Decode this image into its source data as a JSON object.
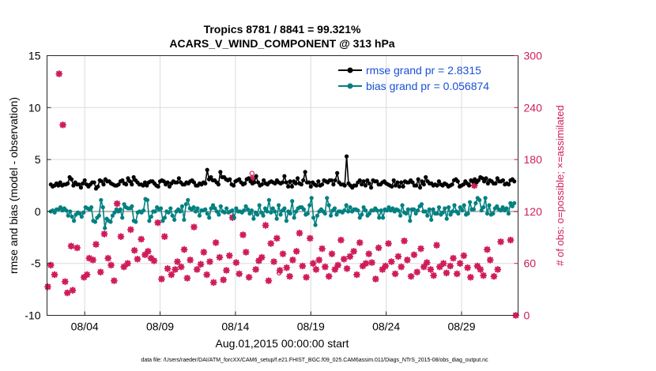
{
  "chart_data": {
    "type": "line",
    "title_line1": "Tropics 8781 / 8841 = 99.321%",
    "title_line2": "ACARS_V_WIND_COMPONENT @ 313 hPa",
    "xlabel": "Aug.01,2015 00:00:00 start",
    "ylabel": "rmse and bias (model - observation)",
    "y2label": "# of obs: o=possible; ×=assimilated",
    "xlim": [
      0.5,
      31.75
    ],
    "ylim": [
      -10,
      15
    ],
    "y2lim": [
      0,
      300
    ],
    "x_ticks": [
      3,
      8,
      13,
      18,
      23,
      28
    ],
    "x_tick_labels": [
      "08/04",
      "08/09",
      "08/14",
      "08/19",
      "08/24",
      "08/29"
    ],
    "y_ticks": [
      -10,
      -5,
      0,
      5,
      10,
      15
    ],
    "y2_ticks": [
      0,
      60,
      120,
      180,
      240,
      300
    ],
    "grid": true,
    "legend_position": "top-right",
    "footer": "data file: /Users/raeder/DAI/ATM_forcXX/CAM6_setup/f.e21.FHIST_BGC.f09_025.CAM6assim.011/Diags_NTrS_2015-08/obs_diag_output.nc",
    "colors": {
      "rmse": "#000000",
      "bias": "#008080",
      "obs": "#d01c5b",
      "zero_line": "#b4b4b4",
      "legend_text": "#1a4fd6"
    },
    "series": [
      {
        "name": "rmse grand pr = 2.8315",
        "values": [
          2.6,
          2.4,
          2.5,
          2.7,
          2.5,
          2.8,
          2.5,
          2.6,
          2.6,
          2.7,
          3.3,
          3.1,
          2.5,
          2.8,
          2.6,
          2.6,
          2.3,
          2.7,
          3.0,
          2.6,
          2.4,
          2.6,
          2.8,
          2.8,
          2.2,
          2.4,
          3.0,
          2.9,
          2.6,
          3.1,
          2.9,
          2.9,
          2.7,
          2.6,
          2.5,
          2.5,
          2.6,
          2.9,
          3.0,
          2.7,
          2.6,
          3.2,
          2.9,
          2.6,
          3.3,
          3.0,
          2.8,
          2.6,
          2.6,
          2.5,
          2.8,
          2.5,
          2.8,
          2.9,
          2.9,
          2.7,
          2.5,
          2.4,
          2.9,
          3.0,
          2.9,
          2.6,
          2.8,
          2.4,
          2.7,
          2.9,
          2.8,
          2.8,
          3.2,
          2.8,
          2.6,
          2.6,
          2.8,
          2.7,
          2.9,
          3.0,
          2.8,
          2.5,
          2.5,
          2.7,
          2.6,
          2.8,
          2.7,
          4.0,
          3.1,
          3.3,
          3.0,
          3.0,
          2.8,
          2.6,
          3.8,
          3.3,
          3.3,
          3.1,
          3.0,
          3.1,
          2.6,
          2.5,
          2.9,
          3.0,
          3.1,
          2.8,
          2.6,
          2.7,
          3.1,
          3.2,
          2.9,
          2.7,
          2.8,
          3.4,
          2.8,
          2.5,
          2.6,
          3.0,
          2.7,
          2.6,
          2.8,
          2.9,
          2.8,
          2.7,
          3.0,
          2.8,
          2.7,
          2.8,
          3.4,
          2.8,
          2.4,
          2.9,
          2.4,
          2.9,
          2.7,
          3.2,
          2.7,
          2.6,
          3.0,
          3.8,
          2.8,
          2.8,
          2.4,
          2.8,
          2.6,
          2.5,
          2.9,
          2.5,
          2.6,
          3.0,
          2.9,
          2.8,
          3.0,
          3.0,
          2.6,
          3.0,
          3.7,
          2.8,
          2.6,
          2.6,
          2.5,
          5.3,
          2.7,
          2.5,
          2.3,
          2.5,
          2.5,
          2.8,
          3.0,
          2.6,
          2.9,
          2.5,
          3.0,
          2.7,
          2.3,
          3.0,
          2.9,
          2.9,
          2.6,
          2.6,
          2.8,
          2.9,
          2.7,
          2.6,
          2.5,
          2.4,
          3.0,
          2.5,
          2.8,
          2.4,
          2.8,
          2.4,
          2.9,
          2.8,
          2.8,
          3.0,
          2.8,
          2.5,
          2.5,
          3.1,
          2.3,
          2.9,
          2.6,
          3.3,
          2.9,
          2.7,
          2.7,
          2.5,
          2.6,
          2.5,
          2.9,
          2.6,
          2.5,
          2.7,
          2.6,
          2.4,
          2.5,
          2.6,
          3.0,
          3.1,
          2.9,
          2.4,
          2.5,
          2.6,
          2.9,
          2.7,
          2.5,
          3.0,
          2.9,
          3.1,
          2.8,
          3.0,
          3.3,
          3.2,
          2.9,
          3.2,
          2.7,
          3.0,
          2.9,
          2.7,
          2.7,
          3.2,
          2.9,
          2.9,
          3.0,
          2.6,
          2.7,
          2.6,
          3.0,
          3.1,
          2.9
        ]
      },
      {
        "name": "bias grand pr = 0.056874",
        "values": [
          0.0,
          0.1,
          -0.1,
          0.2,
          0.2,
          0.4,
          0.1,
          0.3,
          0.1,
          -0.4,
          0.0,
          -0.5,
          -0.9,
          -0.3,
          -0.1,
          -0.2,
          -0.5,
          -0.1,
          0.4,
          0.3,
          0.2,
          0.4,
          -0.9,
          -1.0,
          -0.6,
          -0.4,
          1.1,
          0.4,
          -1.6,
          -0.7,
          -0.9,
          -1.0,
          -0.4,
          -0.1,
          0.2,
          0.0,
          0.2,
          -0.6,
          0.7,
          0.4,
          0.3,
          0.3,
          0.5,
          -0.9,
          -1.0,
          -0.1,
          0.0,
          -0.1,
          0.1,
          1.2,
          1.1,
          -0.9,
          -0.5,
          0.0,
          0.0,
          0.4,
          0.2,
          0.3,
          -0.9,
          -0.6,
          0.0,
          -0.1,
          0.3,
          -0.4,
          -0.8,
          0.0,
          0.2,
          0.0,
          0.5,
          -0.8,
          0.7,
          1.1,
          0.3,
          0.2,
          0.4,
          0.0,
          0.3,
          -0.4,
          0.1,
          0.1,
          0.2,
          -0.2,
          -0.6,
          0.3,
          0.6,
          0.3,
          0.0,
          -0.3,
          0.5,
          0.0,
          -0.1,
          0.3,
          -0.1,
          0.0,
          0.1,
          -0.6,
          0.3,
          0.0,
          0.0,
          -0.1,
          0.1,
          0.5,
          0.2,
          -0.2,
          0.1,
          -0.7,
          -0.1,
          -0.3,
          0.6,
          -0.1,
          -0.4,
          0.3,
          0.0,
          1.1,
          -0.1,
          0.3,
          0.0,
          -0.7,
          0.6,
          -0.3,
          0.1,
          0.3,
          -0.9,
          0.0,
          -0.2,
          1.0,
          -0.6,
          0.0,
          0.3,
          0.4,
          0.4,
          0.2,
          -0.3,
          -0.2,
          0.6,
          1.3,
          -0.6,
          -1.3,
          -0.4,
          0.0,
          0.2,
          0.0,
          -0.2,
          1.3,
          0.6,
          -0.4,
          0.1,
          0.3,
          -0.3,
          0.0,
          0.0,
          -0.1,
          0.1,
          0.6,
          0.0,
          0.4,
          0.0,
          0.2,
          0.2,
          0.1,
          -0.6,
          -0.3,
          0.4,
          0.1,
          -0.4,
          -0.2,
          0.1,
          0.1,
          0.3,
          0.1,
          -0.6,
          0.1,
          -0.6,
          0.2,
          0.1,
          0.4,
          0.1,
          0.3,
          0.0,
          0.2,
          0.1,
          -0.4,
          0.6,
          -0.1,
          -0.2,
          0.2,
          -0.9,
          0.2,
          0.2,
          -0.2,
          0.1,
          0.5,
          0.7,
          0.0,
          0.0,
          -0.4,
          0.2,
          -0.8,
          0.2,
          -0.2,
          -0.2,
          0.4,
          -0.3,
          -0.1,
          0.3,
          -0.7,
          0.4,
          -0.3,
          0.0,
          0.6,
          0.0,
          -0.2,
          0.4,
          0.1,
          0.6,
          -0.3,
          -0.2,
          0.9,
          0.2,
          0.2,
          0.8,
          1.3,
          1.1,
          0.1,
          0.4,
          1.3,
          -0.2,
          0.6,
          -0.3,
          -0.2,
          0.3,
          0.5,
          0.2,
          0.1,
          0.4,
          0.1,
          0.3,
          -0.2,
          0.8,
          0.5,
          0.8
        ]
      }
    ],
    "obs_possible": [
      {
        "x": 14.1,
        "y": 164
      },
      {
        "x": 14.1,
        "y": 159
      },
      {
        "x": 15.9,
        "y": 49
      }
    ],
    "obs_assimilated": [
      {
        "x": 0.55,
        "y": 33
      },
      {
        "x": 0.75,
        "y": 58
      },
      {
        "x": 1.0,
        "y": 47
      },
      {
        "x": 1.3,
        "y": 279
      },
      {
        "x": 1.55,
        "y": 220
      },
      {
        "x": 1.7,
        "y": 39
      },
      {
        "x": 1.85,
        "y": 26
      },
      {
        "x": 2.1,
        "y": 80
      },
      {
        "x": 2.2,
        "y": 29
      },
      {
        "x": 2.5,
        "y": 78
      },
      {
        "x": 2.95,
        "y": 44
      },
      {
        "x": 3.15,
        "y": 47
      },
      {
        "x": 3.3,
        "y": 66
      },
      {
        "x": 3.55,
        "y": 64
      },
      {
        "x": 3.75,
        "y": 82
      },
      {
        "x": 4.05,
        "y": 50
      },
      {
        "x": 4.3,
        "y": 94
      },
      {
        "x": 4.55,
        "y": 66
      },
      {
        "x": 4.75,
        "y": 58
      },
      {
        "x": 4.95,
        "y": 40
      },
      {
        "x": 5.15,
        "y": 129
      },
      {
        "x": 5.4,
        "y": 91
      },
      {
        "x": 5.6,
        "y": 56
      },
      {
        "x": 5.85,
        "y": 60
      },
      {
        "x": 6.05,
        "y": 99
      },
      {
        "x": 6.3,
        "y": 75
      },
      {
        "x": 6.5,
        "y": 65
      },
      {
        "x": 6.75,
        "y": 88
      },
      {
        "x": 7.0,
        "y": 70
      },
      {
        "x": 7.2,
        "y": 74
      },
      {
        "x": 7.4,
        "y": 66
      },
      {
        "x": 7.6,
        "y": 63
      },
      {
        "x": 7.85,
        "y": 107
      },
      {
        "x": 8.1,
        "y": 42
      },
      {
        "x": 8.3,
        "y": 91
      },
      {
        "x": 8.5,
        "y": 54
      },
      {
        "x": 8.75,
        "y": 47
      },
      {
        "x": 9.0,
        "y": 53
      },
      {
        "x": 9.15,
        "y": 62
      },
      {
        "x": 9.4,
        "y": 56
      },
      {
        "x": 9.6,
        "y": 76
      },
      {
        "x": 9.8,
        "y": 43
      },
      {
        "x": 10.0,
        "y": 64
      },
      {
        "x": 10.25,
        "y": 102
      },
      {
        "x": 10.45,
        "y": 53
      },
      {
        "x": 10.7,
        "y": 59
      },
      {
        "x": 10.9,
        "y": 73
      },
      {
        "x": 11.1,
        "y": 47
      },
      {
        "x": 11.3,
        "y": 62
      },
      {
        "x": 11.55,
        "y": 38
      },
      {
        "x": 11.7,
        "y": 84
      },
      {
        "x": 11.95,
        "y": 67
      },
      {
        "x": 12.2,
        "y": 41
      },
      {
        "x": 12.4,
        "y": 52
      },
      {
        "x": 12.6,
        "y": 69
      },
      {
        "x": 12.8,
        "y": 113
      },
      {
        "x": 13.05,
        "y": 61
      },
      {
        "x": 13.25,
        "y": 48
      },
      {
        "x": 13.5,
        "y": 93
      },
      {
        "x": 13.7,
        "y": 73
      },
      {
        "x": 13.9,
        "y": 44
      },
      {
        "x": 14.1,
        "y": 157
      },
      {
        "x": 14.35,
        "y": 53
      },
      {
        "x": 14.55,
        "y": 63
      },
      {
        "x": 14.75,
        "y": 67
      },
      {
        "x": 15.0,
        "y": 104
      },
      {
        "x": 15.2,
        "y": 40
      },
      {
        "x": 15.35,
        "y": 83
      },
      {
        "x": 15.55,
        "y": 62
      },
      {
        "x": 15.75,
        "y": 89
      },
      {
        "x": 15.95,
        "y": 52
      },
      {
        "x": 16.15,
        "y": 71
      },
      {
        "x": 16.4,
        "y": 55
      },
      {
        "x": 16.6,
        "y": 45
      },
      {
        "x": 16.8,
        "y": 64
      },
      {
        "x": 17.05,
        "y": 74
      },
      {
        "x": 17.25,
        "y": 95
      },
      {
        "x": 17.45,
        "y": 57
      },
      {
        "x": 17.7,
        "y": 44
      },
      {
        "x": 17.95,
        "y": 89
      },
      {
        "x": 18.15,
        "y": 60
      },
      {
        "x": 18.35,
        "y": 53
      },
      {
        "x": 18.55,
        "y": 64
      },
      {
        "x": 18.75,
        "y": 77
      },
      {
        "x": 18.95,
        "y": 56
      },
      {
        "x": 19.2,
        "y": 45
      },
      {
        "x": 19.4,
        "y": 71
      },
      {
        "x": 19.6,
        "y": 53
      },
      {
        "x": 19.8,
        "y": 58
      },
      {
        "x": 20.0,
        "y": 87
      },
      {
        "x": 20.2,
        "y": 65
      },
      {
        "x": 20.4,
        "y": 54
      },
      {
        "x": 20.6,
        "y": 68
      },
      {
        "x": 20.85,
        "y": 74
      },
      {
        "x": 21.05,
        "y": 47
      },
      {
        "x": 21.25,
        "y": 84
      },
      {
        "x": 21.45,
        "y": 57
      },
      {
        "x": 21.65,
        "y": 60
      },
      {
        "x": 21.85,
        "y": 71
      },
      {
        "x": 22.05,
        "y": 61
      },
      {
        "x": 22.3,
        "y": 42
      },
      {
        "x": 22.5,
        "y": 78
      },
      {
        "x": 22.75,
        "y": 53
      },
      {
        "x": 22.95,
        "y": 57
      },
      {
        "x": 23.15,
        "y": 83
      },
      {
        "x": 23.35,
        "y": 62
      },
      {
        "x": 23.6,
        "y": 48
      },
      {
        "x": 23.8,
        "y": 68
      },
      {
        "x": 24.0,
        "y": 56
      },
      {
        "x": 24.2,
        "y": 86
      },
      {
        "x": 24.4,
        "y": 64
      },
      {
        "x": 24.65,
        "y": 45
      },
      {
        "x": 24.85,
        "y": 70
      },
      {
        "x": 25.05,
        "y": 50
      },
      {
        "x": 25.3,
        "y": 77
      },
      {
        "x": 25.5,
        "y": 56
      },
      {
        "x": 25.7,
        "y": 61
      },
      {
        "x": 25.95,
        "y": 53
      },
      {
        "x": 26.15,
        "y": 46
      },
      {
        "x": 26.35,
        "y": 81
      },
      {
        "x": 26.55,
        "y": 56
      },
      {
        "x": 26.8,
        "y": 60
      },
      {
        "x": 27.0,
        "y": 49
      },
      {
        "x": 27.25,
        "y": 57
      },
      {
        "x": 27.45,
        "y": 66
      },
      {
        "x": 27.7,
        "y": 48
      },
      {
        "x": 27.9,
        "y": 60
      },
      {
        "x": 28.15,
        "y": 69
      },
      {
        "x": 28.4,
        "y": 55
      },
      {
        "x": 28.6,
        "y": 44
      },
      {
        "x": 28.85,
        "y": 150
      },
      {
        "x": 29.05,
        "y": 57
      },
      {
        "x": 29.25,
        "y": 53
      },
      {
        "x": 29.45,
        "y": 46
      },
      {
        "x": 29.7,
        "y": 76
      },
      {
        "x": 29.9,
        "y": 64
      },
      {
        "x": 30.15,
        "y": 45
      },
      {
        "x": 30.4,
        "y": 53
      },
      {
        "x": 30.6,
        "y": 85
      },
      {
        "x": 31.25,
        "y": 87
      },
      {
        "x": 31.6,
        "y": 0
      }
    ]
  }
}
